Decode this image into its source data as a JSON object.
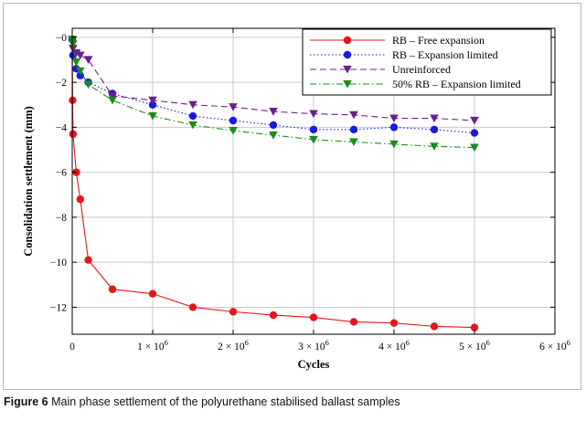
{
  "caption": {
    "label": "Figure 6",
    "text": "Main phase settlement of the polyurethane stabilised ballast samples"
  },
  "chart_data": {
    "type": "line",
    "title": "",
    "xlabel": "Cycles",
    "ylabel": "Consolidation settlement (mm)",
    "xlim": [
      0,
      6000000
    ],
    "ylim": [
      -13.2,
      0.4
    ],
    "grid": true,
    "legend_position": "top-right",
    "x_ticks": [
      {
        "value": 0,
        "mantissa": "0",
        "exp": ""
      },
      {
        "value": 1000000,
        "mantissa": "1 × 10",
        "exp": "6"
      },
      {
        "value": 2000000,
        "mantissa": "2 × 10",
        "exp": "6"
      },
      {
        "value": 3000000,
        "mantissa": "3 × 10",
        "exp": "6"
      },
      {
        "value": 4000000,
        "mantissa": "4 × 10",
        "exp": "6"
      },
      {
        "value": 5000000,
        "mantissa": "5 × 10",
        "exp": "6"
      },
      {
        "value": 6000000,
        "mantissa": "6 × 10",
        "exp": "6"
      }
    ],
    "y_ticks": [
      {
        "value": 0,
        "label": "−0"
      },
      {
        "value": -2,
        "label": "−2"
      },
      {
        "value": -4,
        "label": "−4"
      },
      {
        "value": -6,
        "label": "−6"
      },
      {
        "value": -8,
        "label": "−8"
      },
      {
        "value": -10,
        "label": "−10"
      },
      {
        "value": -12,
        "label": "−12"
      }
    ],
    "series": [
      {
        "name": "RB – Free expansion",
        "color": "#e8141b",
        "marker": "circle",
        "line": "solid",
        "x": [
          0,
          5000,
          10000,
          50000,
          100000,
          200000,
          500000,
          1000000,
          1500000,
          2000000,
          2500000,
          3000000,
          3500000,
          4000000,
          4500000,
          5000000
        ],
        "y": [
          -0.1,
          -2.8,
          -4.3,
          -6.0,
          -7.2,
          -9.9,
          -11.2,
          -11.4,
          -12.0,
          -12.2,
          -12.35,
          -12.45,
          -12.65,
          -12.7,
          -12.85,
          -12.9
        ]
      },
      {
        "name": "RB – Expansion limited",
        "color": "#1a1ae0",
        "marker": "circle",
        "line": "dotted",
        "x": [
          0,
          10000,
          50000,
          100000,
          200000,
          500000,
          1000000,
          1500000,
          2000000,
          2500000,
          3000000,
          3500000,
          4000000,
          4500000,
          5000000
        ],
        "y": [
          -0.1,
          -0.8,
          -1.4,
          -1.7,
          -2.0,
          -2.5,
          -3.0,
          -3.5,
          -3.7,
          -3.9,
          -4.1,
          -4.1,
          -4.0,
          -4.1,
          -4.25
        ]
      },
      {
        "name": "Unreinforced",
        "color": "#6a1f8c",
        "marker": "triangle-down",
        "line": "dashed",
        "x": [
          0,
          10000,
          50000,
          100000,
          200000,
          500000,
          1000000,
          1500000,
          2000000,
          2500000,
          3000000,
          3500000,
          4000000,
          4500000,
          5000000
        ],
        "y": [
          -0.1,
          -0.5,
          -0.7,
          -0.8,
          -1.0,
          -2.6,
          -2.8,
          -3.0,
          -3.1,
          -3.3,
          -3.4,
          -3.45,
          -3.6,
          -3.6,
          -3.7
        ]
      },
      {
        "name": "50% RB – Expansion limited",
        "color": "#1a8c1a",
        "marker": "triangle-down",
        "line": "dashdot",
        "x": [
          0,
          10000,
          50000,
          100000,
          200000,
          500000,
          1000000,
          1500000,
          2000000,
          2500000,
          3000000,
          3500000,
          4000000,
          4500000,
          5000000
        ],
        "y": [
          -0.1,
          -0.3,
          -1.1,
          -1.5,
          -2.1,
          -2.8,
          -3.5,
          -3.9,
          -4.15,
          -4.35,
          -4.55,
          -4.65,
          -4.75,
          -4.85,
          -4.9
        ]
      }
    ]
  }
}
